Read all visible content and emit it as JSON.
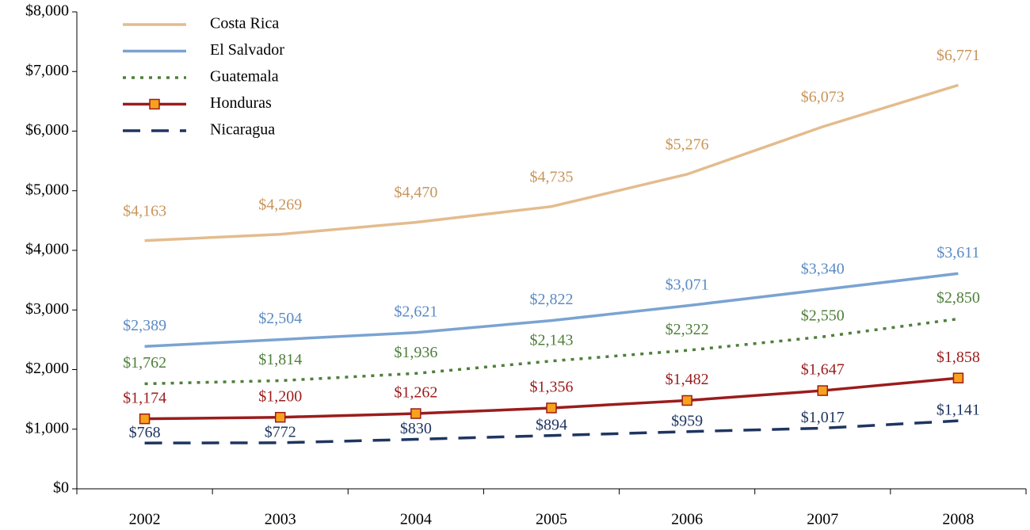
{
  "chart_data": {
    "type": "line",
    "categories": [
      "2002",
      "2003",
      "2004",
      "2005",
      "2006",
      "2007",
      "2008"
    ],
    "series": [
      {
        "name": "Costa Rica",
        "color": "#e3bc8e",
        "label_color": "#c8955a",
        "dash": "solid",
        "values": [
          4163,
          4269,
          4470,
          4735,
          5276,
          6073,
          6771
        ],
        "value_labels": [
          "$4,163",
          "$4,269",
          "$4,470",
          "$4,735",
          "$5,276",
          "$6,073",
          "$6,771"
        ]
      },
      {
        "name": "El Salvador",
        "color": "#7aa3d1",
        "label_color": "#5b8bc4",
        "dash": "solid",
        "values": [
          2389,
          2504,
          2621,
          2822,
          3071,
          3340,
          3611
        ],
        "value_labels": [
          "$2,389",
          "$2,504",
          "$2,621",
          "$2,822",
          "$3,071",
          "$3,340",
          "$3,611"
        ]
      },
      {
        "name": "Guatemala",
        "color": "#4f7f3a",
        "label_color": "#4f7f3a",
        "dash": "dotted",
        "values": [
          1762,
          1814,
          1936,
          2143,
          2322,
          2550,
          2850
        ],
        "value_labels": [
          "$1,762",
          "$1,814",
          "$1,936",
          "$2,143",
          "$2,322",
          "$2,550",
          "$2,850"
        ]
      },
      {
        "name": "Honduras",
        "color": "#9b1c1c",
        "label_color": "#9b1c1c",
        "dash": "solid",
        "marker": "square",
        "marker_color": "#f7a21b",
        "values": [
          1174,
          1200,
          1262,
          1356,
          1482,
          1647,
          1858
        ],
        "value_labels": [
          "$1,174",
          "$1,200",
          "$1,262",
          "$1,356",
          "$1,482",
          "$1,647",
          "$1,858"
        ]
      },
      {
        "name": "Nicaragua",
        "color": "#1f3561",
        "label_color": "#1f3561",
        "dash": "dashed",
        "values": [
          768,
          772,
          830,
          894,
          959,
          1017,
          1141
        ],
        "value_labels": [
          "$768",
          "$772",
          "$830",
          "$894",
          "$959",
          "$1,017",
          "$1,141"
        ]
      }
    ],
    "ylim": [
      0,
      8000
    ],
    "yticks": [
      {
        "value": 0,
        "label": "$0"
      },
      {
        "value": 1000,
        "label": "$1,000"
      },
      {
        "value": 2000,
        "label": "$2,000"
      },
      {
        "value": 3000,
        "label": "$3,000"
      },
      {
        "value": 4000,
        "label": "$4,000"
      },
      {
        "value": 5000,
        "label": "$5,000"
      },
      {
        "value": 6000,
        "label": "$6,000"
      },
      {
        "value": 7000,
        "label": "$7,000"
      },
      {
        "value": 8000,
        "label": "$8,000"
      }
    ],
    "legend": "top-left"
  }
}
